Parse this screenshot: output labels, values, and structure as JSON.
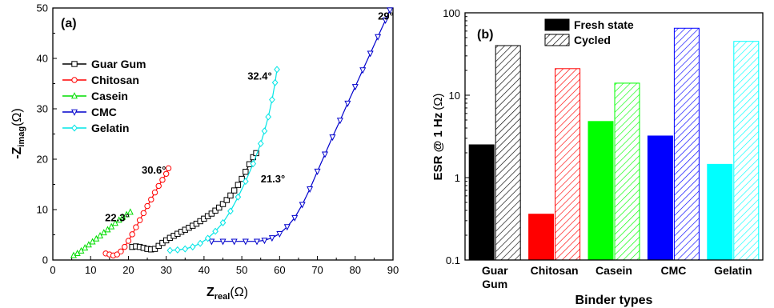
{
  "chart_data": [
    {
      "panel_label": "(a)",
      "type": "scatter",
      "xlabel_main": "Z",
      "xlabel_sub": "real",
      "xlabel_unit": "(Ω)",
      "ylabel_main": "-Z",
      "ylabel_sub": "imag",
      "ylabel_unit": "(Ω)",
      "xlim": [
        0,
        90
      ],
      "ylim": [
        0,
        50
      ],
      "xticks": [
        "0",
        "10",
        "20",
        "30",
        "40",
        "50",
        "60",
        "70",
        "80",
        "90"
      ],
      "yticks": [
        "0",
        "10",
        "20",
        "30",
        "40",
        "50"
      ],
      "series": [
        {
          "name": "Guar Gum",
          "color": "#000000",
          "marker": "square",
          "points": [
            [
              21,
              2.6
            ],
            [
              22,
              2.7
            ],
            [
              23,
              2.6
            ],
            [
              24,
              2.4
            ],
            [
              25,
              2.2
            ],
            [
              26,
              2.1
            ],
            [
              27,
              2.2
            ],
            [
              28,
              2.8
            ],
            [
              29,
              3.4
            ],
            [
              30,
              3.9
            ],
            [
              31,
              4.4
            ],
            [
              32,
              4.8
            ],
            [
              33,
              5.2
            ],
            [
              34,
              5.6
            ],
            [
              35,
              6.0
            ],
            [
              36,
              6.4
            ],
            [
              37,
              6.8
            ],
            [
              38,
              7.2
            ],
            [
              39,
              7.7
            ],
            [
              40,
              8.2
            ],
            [
              41,
              8.7
            ],
            [
              42,
              9.2
            ],
            [
              43,
              9.8
            ],
            [
              44,
              10.4
            ],
            [
              45,
              11.1
            ],
            [
              46,
              11.9
            ],
            [
              47,
              12.8
            ],
            [
              48,
              13.8
            ],
            [
              49,
              14.9
            ],
            [
              50,
              16.1
            ],
            [
              51,
              17.5
            ],
            [
              52,
              19.0
            ],
            [
              53,
              20.4
            ],
            [
              53.8,
              21.2
            ]
          ]
        },
        {
          "name": "Chitosan",
          "color": "#ff0000",
          "marker": "circle",
          "points": [
            [
              14,
              1.3
            ],
            [
              15,
              1.1
            ],
            [
              16,
              0.9
            ],
            [
              17,
              1.1
            ],
            [
              18,
              1.7
            ],
            [
              19,
              2.6
            ],
            [
              20,
              3.8
            ],
            [
              21,
              5.1
            ],
            [
              22,
              6.5
            ],
            [
              23,
              7.9
            ],
            [
              24,
              9.3
            ],
            [
              25,
              10.7
            ],
            [
              26,
              12.0
            ],
            [
              27,
              13.4
            ],
            [
              28,
              14.7
            ],
            [
              29,
              15.9
            ],
            [
              30,
              17.1
            ],
            [
              30.6,
              18.2
            ]
          ]
        },
        {
          "name": "Casein",
          "color": "#00dd00",
          "marker": "triangle-up",
          "points": [
            [
              5.5,
              0.9
            ],
            [
              6.5,
              1.3
            ],
            [
              7.5,
              1.8
            ],
            [
              8.5,
              2.4
            ],
            [
              9.5,
              3.0
            ],
            [
              10.5,
              3.6
            ],
            [
              11.5,
              4.2
            ],
            [
              12.5,
              4.8
            ],
            [
              13.5,
              5.4
            ],
            [
              14.5,
              6.0
            ],
            [
              15.5,
              6.6
            ],
            [
              16.5,
              7.3
            ],
            [
              17.5,
              7.9
            ],
            [
              18.5,
              8.5
            ],
            [
              19.5,
              9.0
            ],
            [
              20.5,
              9.5
            ]
          ]
        },
        {
          "name": "CMC",
          "color": "#0000cc",
          "marker": "triangle-down",
          "points": [
            [
              42,
              3.7
            ],
            [
              45,
              3.7
            ],
            [
              48,
              3.7
            ],
            [
              51,
              3.7
            ],
            [
              54,
              3.7
            ],
            [
              56,
              3.9
            ],
            [
              58,
              4.4
            ],
            [
              60,
              5.2
            ],
            [
              62,
              6.6
            ],
            [
              64,
              8.4
            ],
            [
              66,
              11.0
            ],
            [
              68,
              14.1
            ],
            [
              70,
              17.6
            ],
            [
              72,
              21.0
            ],
            [
              74,
              24.4
            ],
            [
              76,
              27.7
            ],
            [
              78,
              31.1
            ],
            [
              80,
              34.4
            ],
            [
              82,
              37.7
            ],
            [
              84,
              41.0
            ],
            [
              86,
              44.3
            ],
            [
              88,
              47.6
            ],
            [
              89.2,
              49.6
            ]
          ]
        },
        {
          "name": "Gelatin",
          "color": "#00e5e5",
          "marker": "diamond",
          "points": [
            [
              31,
              1.9
            ],
            [
              33,
              2.0
            ],
            [
              35,
              2.2
            ],
            [
              37,
              2.6
            ],
            [
              39,
              3.3
            ],
            [
              41,
              4.3
            ],
            [
              43,
              5.7
            ],
            [
              45,
              7.4
            ],
            [
              47,
              9.7
            ],
            [
              49,
              12.5
            ],
            [
              51,
              15.6
            ],
            [
              53,
              19.1
            ],
            [
              55,
              23.1
            ],
            [
              56,
              25.6
            ],
            [
              57,
              28.4
            ],
            [
              58,
              31.8
            ],
            [
              58.8,
              35.2
            ],
            [
              59.3,
              37.8
            ]
          ]
        }
      ],
      "annotations": [
        {
          "text": "29°",
          "x": 86,
          "y": 48.5
        },
        {
          "text": "32.4°",
          "x": 51.5,
          "y": 36.6
        },
        {
          "text": "30.6°",
          "x": 23.5,
          "y": 17.9
        },
        {
          "text": "21.3°",
          "x": 55,
          "y": 16.2
        },
        {
          "text": "22.3°",
          "x": 13.8,
          "y": 8.5
        }
      ]
    },
    {
      "panel_label": "(b)",
      "type": "bar",
      "yscale": "log",
      "ylim": [
        0.1,
        100
      ],
      "yticks": [
        "0.1",
        "1",
        "10",
        "100"
      ],
      "ylabel_main": "ESR @ 1 Hz",
      "ylabel_unit": "(Ω)",
      "xlabel": "Binder types",
      "categories": [
        "Guar Gum",
        "Chitosan",
        "Casein",
        "CMC",
        "Gelatin"
      ],
      "category_lines": [
        [
          "Guar",
          "Gum"
        ],
        [
          "Chitosan"
        ],
        [
          "Casein"
        ],
        [
          "CMC"
        ],
        [
          "Gelatin"
        ]
      ],
      "colors": [
        "#000000",
        "#ff0000",
        "#00ff00",
        "#0000ff",
        "#00ffff"
      ],
      "series": [
        {
          "name": "Fresh state",
          "pattern": "solid",
          "values": [
            2.5,
            0.36,
            4.8,
            3.2,
            1.45
          ]
        },
        {
          "name": "Cycled",
          "pattern": "hatched",
          "values": [
            40,
            21,
            14,
            65,
            45
          ]
        }
      ]
    }
  ]
}
